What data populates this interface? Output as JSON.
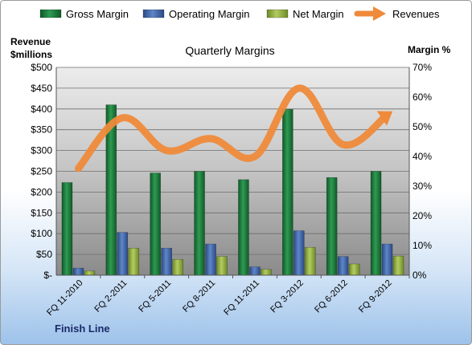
{
  "chart_data": {
    "type": "bar",
    "title": "Quarterly Margins",
    "left_axis_title": [
      "Revenue",
      "$millions"
    ],
    "right_axis_title": "Margin %",
    "footer_label": "Finish Line",
    "categories": [
      "FQ 11-2010",
      "FQ 2-2011",
      "FQ 5-2011",
      "FQ 8-2011",
      "FQ 11-2011",
      "FQ 3-2012",
      "FQ 6-2012",
      "FQ 9-2012"
    ],
    "left_axis": {
      "min": 0,
      "max": 500,
      "step": 50,
      "tick_labels": [
        "$-",
        "$50",
        "$100",
        "$150",
        "$200",
        "$250",
        "$300",
        "$350",
        "$400",
        "$450",
        "$500"
      ]
    },
    "right_axis": {
      "min": 0,
      "max": 70,
      "step": 10,
      "tick_labels": [
        "0%",
        "10%",
        "20%",
        "30%",
        "40%",
        "50%",
        "60%",
        "70%"
      ]
    },
    "series": [
      {
        "name": "Gross Margin",
        "axis": "left",
        "kind": "bar",
        "color": "#1e7a3c",
        "values": [
          223,
          410,
          246,
          250,
          230,
          399,
          235,
          250
        ]
      },
      {
        "name": "Operating Margin",
        "axis": "left",
        "kind": "bar",
        "color": "#3c64a8",
        "values": [
          17,
          103,
          65,
          75,
          20,
          107,
          45,
          75
        ]
      },
      {
        "name": "Net Margin",
        "axis": "left",
        "kind": "bar",
        "color": "#96b045",
        "values": [
          10,
          65,
          38,
          45,
          14,
          67,
          27,
          46
        ]
      },
      {
        "name": "Revenues",
        "axis": "right",
        "kind": "line",
        "color": "#ef8a3a",
        "values": [
          36,
          53,
          42,
          46,
          40,
          63,
          44,
          54
        ]
      }
    ],
    "grid": true,
    "legend_position": "top"
  }
}
